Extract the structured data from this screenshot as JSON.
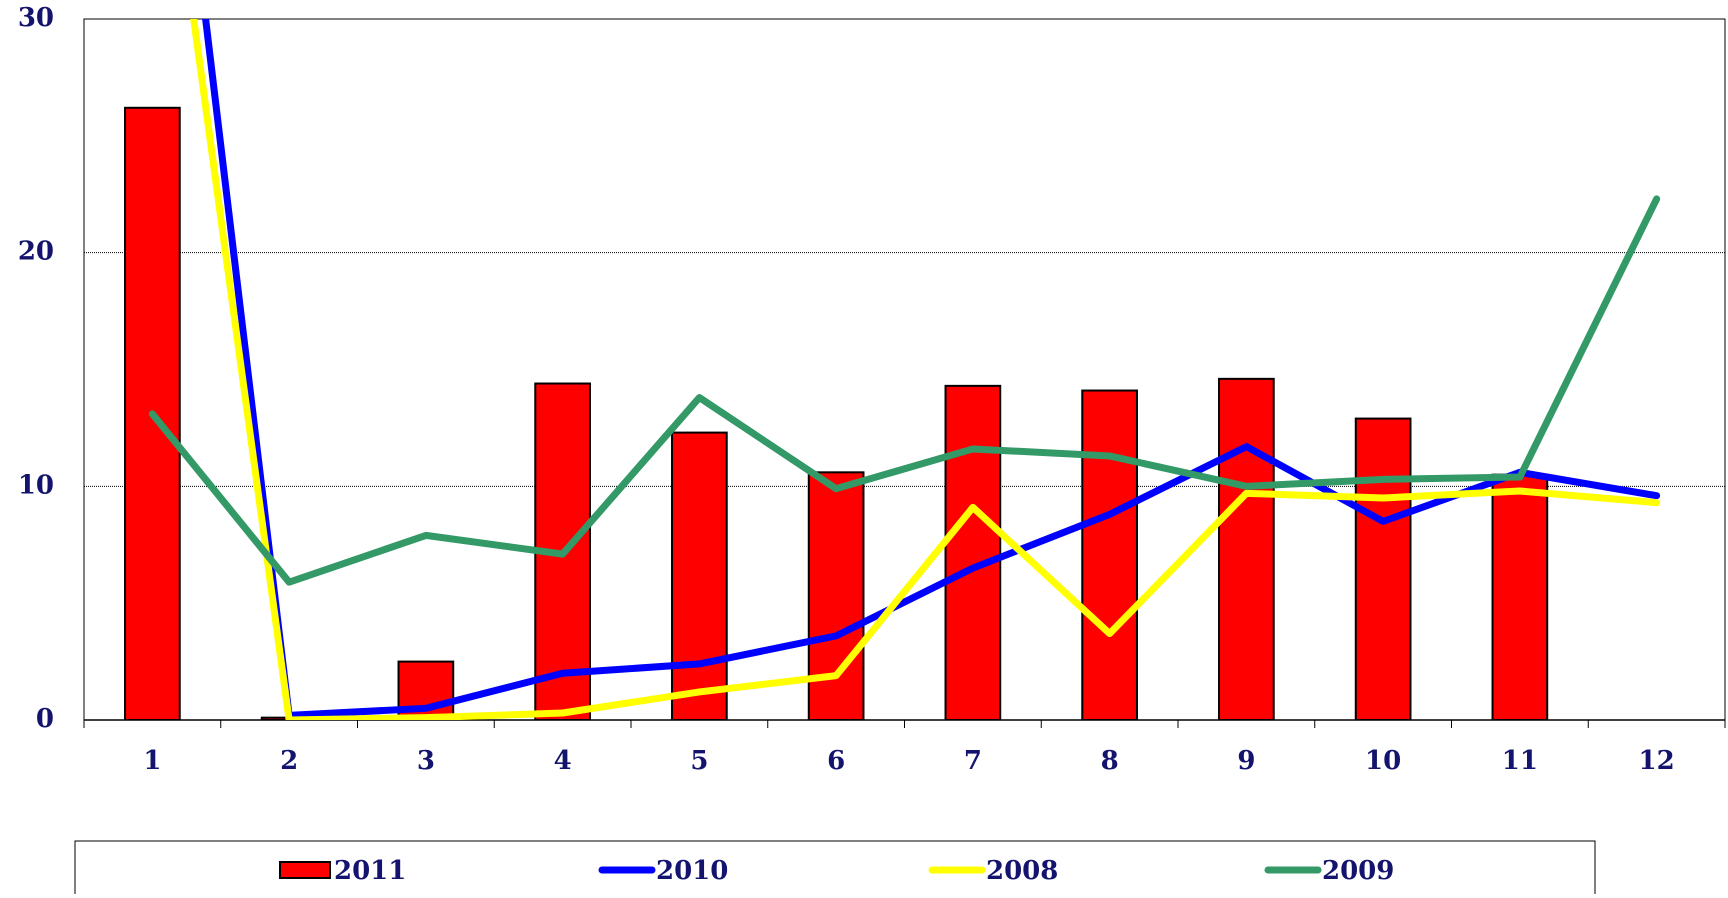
{
  "chart_data": {
    "type": "bar-line",
    "categories": [
      "1",
      "2",
      "3",
      "4",
      "5",
      "6",
      "7",
      "8",
      "9",
      "10",
      "11",
      "12"
    ],
    "ylim": [
      0,
      30
    ],
    "yticks": [
      0,
      10,
      20,
      30
    ],
    "grid": true,
    "series": [
      {
        "name": "2011",
        "kind": "bar",
        "color": "#ff0000",
        "values": [
          26.2,
          0.1,
          2.5,
          14.4,
          12.3,
          10.6,
          14.3,
          14.1,
          14.6,
          12.9,
          10.5,
          null
        ]
      },
      {
        "name": "2010",
        "kind": "line",
        "color": "#0000ff",
        "values": [
          49,
          0.2,
          0.5,
          2.0,
          2.4,
          3.6,
          6.5,
          8.8,
          11.7,
          8.5,
          10.6,
          9.6
        ]
      },
      {
        "name": "2008",
        "kind": "line",
        "color": "#ffff00",
        "values": [
          43,
          0,
          0.1,
          0.3,
          1.2,
          1.9,
          9.1,
          3.7,
          9.7,
          9.5,
          9.8,
          9.3
        ]
      },
      {
        "name": "2009",
        "kind": "line",
        "color": "#339966",
        "values": [
          13.1,
          5.9,
          7.9,
          7.1,
          13.8,
          9.9,
          11.6,
          11.3,
          10.0,
          10.3,
          10.4,
          22.3
        ]
      }
    ]
  }
}
